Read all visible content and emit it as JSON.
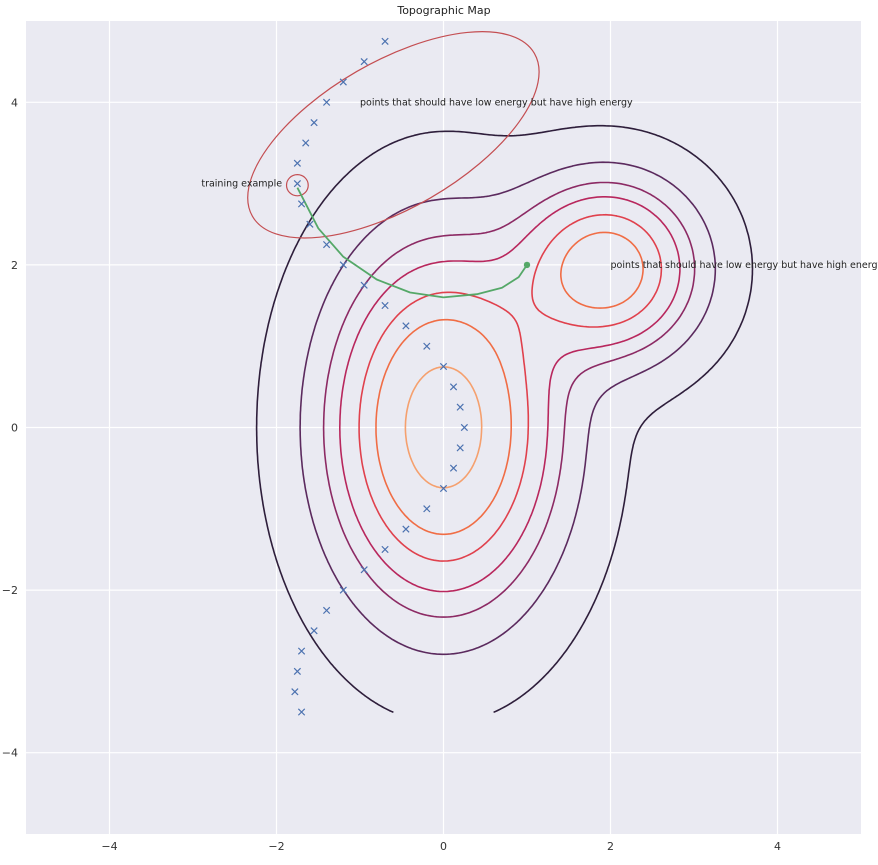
{
  "chart_data": {
    "type": "line",
    "title": "Topographic Map",
    "xlabel": "",
    "ylabel": "",
    "xlim": [
      -5,
      5
    ],
    "ylim": [
      -5,
      5
    ],
    "x_ticks": [
      -4,
      -2,
      0,
      2,
      4
    ],
    "y_ticks": [
      -4,
      -2,
      0,
      2,
      4
    ],
    "x_tick_labels": [
      "−4",
      "−2",
      "0",
      "2",
      "4"
    ],
    "y_tick_labels": [
      "−4",
      "−2",
      "0",
      "2",
      "4"
    ],
    "grid": true,
    "background_color": "#eaeaf2",
    "contours": {
      "centers": [
        {
          "x": 0,
          "y": 0,
          "sx": 0.8,
          "sy": 1.3,
          "w": 1.0
        },
        {
          "x": 1.95,
          "y": 1.95,
          "sx": 0.65,
          "sy": 0.65,
          "w": 0.75
        }
      ],
      "levels": [
        0.02,
        0.1,
        0.2,
        0.3,
        0.45,
        0.6,
        0.85
      ],
      "colors": [
        "#2e1e3b",
        "#5b2a5e",
        "#8c2a64",
        "#b8275d",
        "#e0414d",
        "#f06d45",
        "#f5a06e"
      ]
    },
    "samples": {
      "marker": "x",
      "color": "#4c72b0",
      "x": [
        -0.7,
        -0.95,
        -1.2,
        -1.4,
        -1.55,
        -1.65,
        -1.75,
        -1.75,
        -1.7,
        -1.6,
        -1.4,
        -1.2,
        -0.95,
        -0.7,
        -0.45,
        -0.2,
        0.0,
        0.12,
        0.2,
        0.25,
        0.2,
        0.12,
        0.0,
        -0.2,
        -0.45,
        -0.7,
        -0.95,
        -1.2,
        -1.4,
        -1.55,
        -1.7,
        -1.75,
        -1.78,
        -1.7
      ],
      "y": [
        4.75,
        4.5,
        4.25,
        4.0,
        3.75,
        3.5,
        3.25,
        3.0,
        2.75,
        2.5,
        2.25,
        2.0,
        1.75,
        1.5,
        1.25,
        1.0,
        0.75,
        0.5,
        0.25,
        0.0,
        -0.25,
        -0.5,
        -0.75,
        -1.0,
        -1.25,
        -1.5,
        -1.75,
        -2.0,
        -2.25,
        -2.5,
        -2.75,
        -3.0,
        -3.25,
        -3.5
      ]
    },
    "path": {
      "color": "#55a868",
      "x": [
        -1.75,
        -1.5,
        -1.2,
        -0.8,
        -0.4,
        0.0,
        0.4,
        0.7,
        0.9,
        1.0
      ],
      "y": [
        2.95,
        2.45,
        2.1,
        1.82,
        1.66,
        1.6,
        1.64,
        1.72,
        1.85,
        2.0
      ],
      "end": {
        "x": 1.0,
        "y": 2.0
      }
    },
    "ellipses": [
      {
        "name": "high-energy-region",
        "cx": -0.6,
        "cy": 3.6,
        "rx": 1.95,
        "ry": 0.9,
        "angle": 30,
        "color": "#c44e52"
      },
      {
        "name": "training-example-circle",
        "cx": -1.75,
        "cy": 2.98,
        "rx": 0.13,
        "ry": 0.13,
        "angle": 0,
        "color": "#c44e52"
      }
    ],
    "annotations": [
      {
        "name": "training-example-label",
        "text": "training example",
        "x": -2.9,
        "y": 3.0
      },
      {
        "name": "high-energy-label-top",
        "text": "points that should have low energy but have high energy",
        "x": -1.0,
        "y": 4.0
      },
      {
        "name": "high-energy-label-right",
        "text": "points that should have low energy but have high energy",
        "x": 2.0,
        "y": 2.0
      }
    ]
  }
}
